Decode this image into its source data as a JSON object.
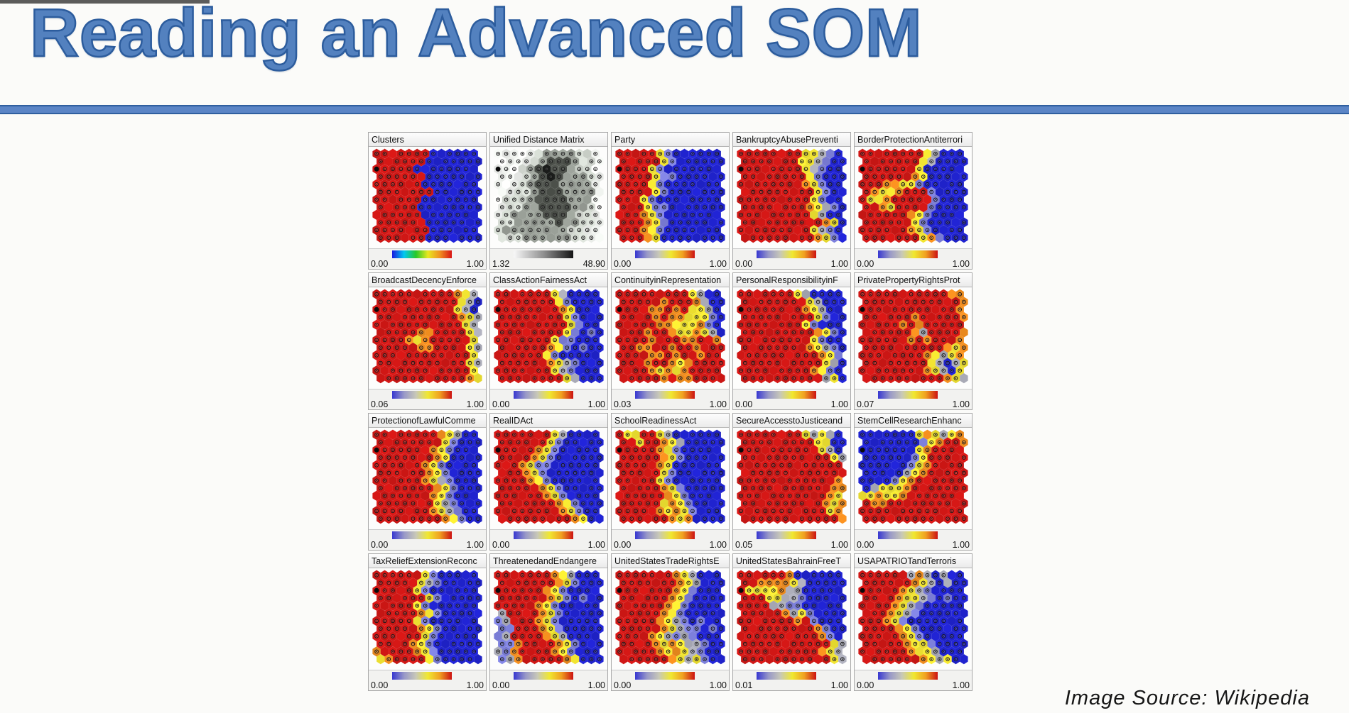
{
  "slide": {
    "title": "Reading an Advanced SOM",
    "attribution": "Image Source: Wikipedia"
  },
  "theme": {
    "title_color": "#5381bf",
    "title_outline": "#2c5c9d",
    "divider_fill": "#5b85c6",
    "divider_edge": "#2f5f9f",
    "panel_border": "#a8a8a8"
  },
  "chart_data": {
    "type": "heatmap",
    "subtype": "som-component-planes-hex",
    "layout": {
      "panel_rows": 4,
      "panel_cols": 5,
      "hex_cols": 13,
      "hex_rows": 12,
      "legend_position": "bottom-of-each-panel",
      "grid": false
    },
    "palette": {
      "R": "#d01715",
      "O": "#ef8c1e",
      "Y": "#f2e531",
      "B": "#2023cf",
      "P": "#7d80dc",
      "G": "#a9aab6",
      "W": "#f1f4f0",
      "g": "#d4dad2",
      "d": "#9aa098",
      "D": "#4e524c",
      "K": "#1b1d1b"
    },
    "colormaps": {
      "rainbow": [
        "#1a1ae0",
        "#00c8f0",
        "#28c828",
        "#e8e820",
        "#f09020",
        "#d81414"
      ],
      "grayscale": [
        "#f8f8f8",
        "#909090",
        "#141414"
      ],
      "thermal": [
        "#3838d0",
        "#9898c8",
        "#c8c8b8",
        "#f0e830",
        "#f0a020",
        "#cc1212"
      ]
    },
    "panels": [
      {
        "title": "Clusters",
        "min": "0.00",
        "max": "1.00",
        "colormap": "rainbow",
        "cells": [
          "RRRRRRRBBBBBB",
          "RRRRRRBBBBBBB",
          "RRRRRBBBBBBBB",
          "RRRRRRBBBBBBB",
          "RRRRRRBBBBBBB",
          "RRRRRRRBBBBBB",
          "RRRRRRBBBBBBB",
          "RRRRRBBBBBBBB",
          "RRRRRRBBBBBBB",
          "RRRRRRBBBBBBB",
          "RRRRRRRBBBBBB",
          "RRRRRRBBBBBBB"
        ]
      },
      {
        "title": "Unified Distance Matrix",
        "min": "1.32",
        "max": "48.90",
        "colormap": "grayscale",
        "cells": [
          "WWWWWgddddggW",
          "WWWWgdDDDdggW",
          "WWWgdDKDDdggW",
          "WWWgdDKDdddgW",
          "WWWgdDDDddddW",
          "WWggdDDDddddW",
          "WgggdDDDDdddW",
          "WggddDDDDddgW",
          "WgddddDDDdggW",
          "ggdddddDddggW",
          "gddddddddggWW",
          "gggddddddggWW"
        ]
      },
      {
        "title": "Party",
        "min": "0.00",
        "max": "1.00",
        "colormap": "thermal",
        "cells": [
          "RRRRRYPBBBBBB",
          "RRRRRYPBBBBBB",
          "RRRRYPBBBBBBB",
          "RRRRYPPBBBBBB",
          "RRRRYPBBBBBBB",
          "RRRRYPBBBBBBB",
          "RRRYPBBBBBBBB",
          "RRRYPPBBBBBBB",
          "RRROYPBBBBBBB",
          "RRROYPBBBBBBB",
          "RRROYPBBBBBBB",
          "RRROYBBBBBBBB"
        ]
      },
      {
        "title": "BankruptcyAbusePreventi",
        "min": "0.00",
        "max": "1.00",
        "colormap": "thermal",
        "cells": [
          "RRRRRRRRYYGPB",
          "RRRRRRRYYGPBB",
          "RRRRRRRRYGPBB",
          "RRRRRRRRYPBBB",
          "RRRRRRRROYPBB",
          "RRRRRRRRRYPBB",
          "RRRRRRRRRYPBB",
          "RRRRRRRROYGPB",
          "RRRRRRRRRYGBB",
          "RRRRRRRRRROYB",
          "RRRRRRRRRYGPB",
          "RRRRRRRRROYPB"
        ]
      },
      {
        "title": "BorderProtectionAntiterrori",
        "min": "0.00",
        "max": "1.00",
        "colormap": "thermal",
        "cells": [
          "RRRRRRRRYGBBB",
          "RRRRRRRYGBBBB",
          "RRRRRRRYBBBBB",
          "RRRRRROYBBBBB",
          "RRROOYYPBBBBB",
          "ROYYORRRPBBBB",
          "RYYORRRRRPBBB",
          "RROYRRRRPBBBB",
          "RRRRRROYPBBBB",
          "RRRRRRYPBBBBB",
          "RRRRRROYPBBBB",
          "RRRRRRRYOPBBB"
        ]
      },
      {
        "title": "BroadcastDecencyEnforce",
        "min": "0.06",
        "max": "1.00",
        "colormap": "thermal",
        "cells": [
          "RRRRRRRRRROYG",
          "RRRRRRRRRRYGB",
          "RRRRRRRRRRYGB",
          "RRRRRRRRRROYG",
          "RRRRRRRRRRRYG",
          "RRRRROORRRRYG",
          "RRRROYORRRRRY",
          "RRRRROORRRRYG",
          "RRRRRRRRRRRRY",
          "RRRRRRRRRRRYG",
          "RRRRRRRRRRRRY",
          "RRRRRRRRRRROY"
        ]
      },
      {
        "title": "ClassActionFairnessAct",
        "min": "0.00",
        "max": "1.00",
        "colormap": "thermal",
        "cells": [
          "RRRRRRRYGBBBB",
          "RRRRRRRYPBBBB",
          "RRRRRRRROYBBB",
          "RRRRRRRRYPBBB",
          "RRRRRRRRRYPBB",
          "RRRRRRRRYPBPB",
          "RRRRRRRYPPBBB",
          "RRRRRROYPBPBB",
          "RRRRRRYPBBBBB",
          "RRRRRROYGPBBB",
          "RRRRRRRYGPBBB",
          "RRRRRRRRYGBBB"
        ]
      },
      {
        "title": "ContinuityinRepresentation",
        "min": "0.03",
        "max": "1.00",
        "colormap": "thermal",
        "cells": [
          "RRRRRRRRRYGBB",
          "RRRRRORRROGBB",
          "RRRROORORYYGB",
          "RRRROROOYYYPB",
          "RRRRROOYYYOPB",
          "RRRORROYYOYGB",
          "RRRRORRROORRO",
          "RROORRORRORRR",
          "RRRROORORRORR",
          "RRRORROYORRRR",
          "RRRROYOYORRRR",
          "RRRRROROORRRR"
        ]
      },
      {
        "title": "PersonalResponsibilityinF",
        "min": "0.00",
        "max": "1.00",
        "colormap": "thermal",
        "cells": [
          "RRRRRRRYGBBBB",
          "RRRRRRRRYGBBB",
          "RRRRRRRROYGBB",
          "RRRRRRRRRYPBB",
          "RRRRRRRRYPBBB",
          "RRRRRRRRROYPB",
          "RRRRRRRRRYPBB",
          "RRRRRRRROYGPB",
          "RRRRRRRRRROYP",
          "RRRRRRRRRRYGB",
          "RRRRRRRRROYPB",
          "RRRRRRRRRRGYB"
        ]
      },
      {
        "title": "PrivatePropertyRightsProt",
        "min": "0.07",
        "max": "1.00",
        "colormap": "thermal",
        "cells": [
          "RRRRRRRRRRROO",
          "RRRRRRRRRRRRO",
          "RRRRRRRRRRRRO",
          "RRRRRRORRRRRO",
          "RRRRRORORRRRR",
          "RRRRRROGRRRRO",
          "RRRRRRORORRRO",
          "RRRRRRRRRROYO",
          "RRRRRRRROYGYO",
          "RRRRRRRRYGBGY",
          "RRRRRRRROYGBY",
          "RRRRRRRRRROYG"
        ]
      },
      {
        "title": "ProtectionofLawfulComme",
        "min": "0.00",
        "max": "1.00",
        "colormap": "thermal",
        "cells": [
          "RRRRRRRROYGBB",
          "RRRRRRRRYPBBB",
          "RRRRRRROYPBBB",
          "RRRRRRROYBBBB",
          "RRRRRROYPBBBB",
          "RRRRRROYPBBBB",
          "RRRRRROYGPBBB",
          "RRRRRRROYPBBB",
          "RRRRRRROYPBBB",
          "RRRRRRRYGPBBB",
          "RRRRRRROYGPBB",
          "RRRRRRRROYPBB"
        ]
      },
      {
        "title": "RealIDAct",
        "min": "0.00",
        "max": "1.00",
        "colormap": "thermal",
        "cells": [
          "RRRRRRRYGBBBB",
          "RRRRRRYPBBBBB",
          "RRRRROYPBBBBB",
          "RRRROYPBBBBBB",
          "RRROYPPBBBBBB",
          "RRROYPBBBBBBB",
          "RRRROYPBBBBBB",
          "RRRRROYPBBBBB",
          "RRRRRROYPBBBB",
          "RRRRRRROYPBBB",
          "RRRRRRRROYPBB",
          "RRRRRRRRROYBB"
        ]
      },
      {
        "title": "SchoolReadinessAct",
        "min": "0.00",
        "max": "1.00",
        "colormap": "thermal",
        "cells": [
          "RYYRRYGBBBBBB",
          "RRYRROYGBBBBB",
          "RRRRROYPBBBBB",
          "RRRRROYPBBBBB",
          "RRRRROYBBBBBB",
          "RRRRRYPBBBBBB",
          "RRRRRYPBBBBBB",
          "RRRRROYPBBBBB",
          "RRRRRROYPBBBB",
          "RRRRRYOYPBBBB",
          "RRRRROYOYPBBB",
          "RRRRRROYOBBBB"
        ]
      },
      {
        "title": "SecureAccesstoJusticeand",
        "min": "0.05",
        "max": "1.00",
        "colormap": "thermal",
        "cells": [
          "RRRRRRRRYGYGB",
          "RRRRRRRRRYYBB",
          "RRRRRRRRRRYGB",
          "RRRRRRRRRRRYG",
          "RRRRRRRRRRRRR",
          "RRRRRRRRRRRRR",
          "RRRRRRRRRRRRO",
          "RRRRRRRRRRROO",
          "RRRRRRRRRRROY",
          "RRRRRRRRRROYO",
          "RRRRRRRRRRRYO",
          "RRRRRRRRRRRRO"
        ]
      },
      {
        "title": "StemCellResearchEnhanc",
        "min": "0.00",
        "max": "1.00",
        "colormap": "thermal",
        "cells": [
          "BBBBBBBYOYGYO",
          "BBBBBBBPYORRO",
          "BBBBBBBYORRRR",
          "BBBBBBPYRRRRR",
          "BBBBBBPYORRRR",
          "BBBBBGYORRRRR",
          "BBBBPYORRRRRR",
          "BGYYYORRRRRRR",
          "YYOYYORRRRRRR",
          "ROORRRRRRRRRR",
          "RRRRRRRRRRRRR",
          "RRRRRRRRRRRRR"
        ]
      },
      {
        "title": "TaxReliefExtensionReconc",
        "min": "0.00",
        "max": "1.00",
        "colormap": "thermal",
        "cells": [
          "RRRRRRYPBBBBB",
          "RRRRRYGPBBBBB",
          "RRRRRYPBBBBBB",
          "RRRRRRYPBBBBB",
          "RRRRRYPBBBBBB",
          "RRRRROYPBBBBB",
          "RRRRRYPBBBBBB",
          "RRRRROYPBBBBB",
          "RRRRRRYPBBBBB",
          "RRRROYPBBBBBB",
          "ORRRROYPBBBBB",
          "YORRRRYPBBBBB"
        ]
      },
      {
        "title": "ThreatenedandEndangere",
        "min": "0.00",
        "max": "1.00",
        "colormap": "thermal",
        "cells": [
          "RRRRRRROYGBBB",
          "RRRRRRROYPBBB",
          "RRRRRROYPBBBB",
          "RRRRRROYPBPBB",
          "RRRRROYPBBBBB",
          "GRRRROYPBBBBB",
          "PGRRROYPBBBBB",
          "PPRRROYPBBBBB",
          "PGRRRROYGBBBB",
          "PPORRRROYPBBB",
          "GPORRRROYPBBB",
          "PGORRRRROYBBB"
        ]
      },
      {
        "title": "UnitedStatesTradeRightsE",
        "min": "0.00",
        "max": "1.00",
        "colormap": "thermal",
        "cells": [
          "RRRRRRROYGBBB",
          "RRRRRRROYGBBB",
          "RRRRRRROYPBBB",
          "RRRRRROYPBBBB",
          "RRRRRROYPBBBB",
          "RRRRROYPBBBBB",
          "RRRRROYGPBPBB",
          "RRRRROYGPPBPB",
          "RRRROYGPGPBBB",
          "RRRROYOYGGPBB",
          "RRRRROYOYGPBB",
          "RRRRRROYGYPBB"
        ]
      },
      {
        "title": "UnitedStatesBahrainFreeT",
        "min": "0.01",
        "max": "1.00",
        "colormap": "thermal",
        "cells": [
          "RRRRRROBBBBBB",
          "RROOOOYGBBBBB",
          "RYYYYOGGBBBBB",
          "RRRYYGGPBBBBB",
          "RRRRGGPPBBBBB",
          "RRRRROGYPBBBB",
          "RRRRRRRORPBBB",
          "RRRRRRRRROPBB",
          "RRRRRRRRRROPB",
          "RRRRRRRRRRRYG",
          "RRRRRRRRRROYG",
          "RRRRRRRRRRRYG"
        ]
      },
      {
        "title": "USAPATRIOTandTerroris",
        "min": "0.00",
        "max": "1.00",
        "colormap": "thermal",
        "cells": [
          "RRRRRRGOGBGBB",
          "RRRRRROYGBGBB",
          "RRRRROYGPBBBB",
          "RRRROYYGPBPBB",
          "RRRROYGPBBBBB",
          "RRROYGPBBBBBB",
          "RRROYPBBBBBBB",
          "RRRROYPBBBBBB",
          "RRRRROYPBBBBB",
          "RRRRROYYPBBBB",
          "RRRRRROYYGBBB",
          "RRRRRRROYGYBB"
        ]
      }
    ]
  }
}
